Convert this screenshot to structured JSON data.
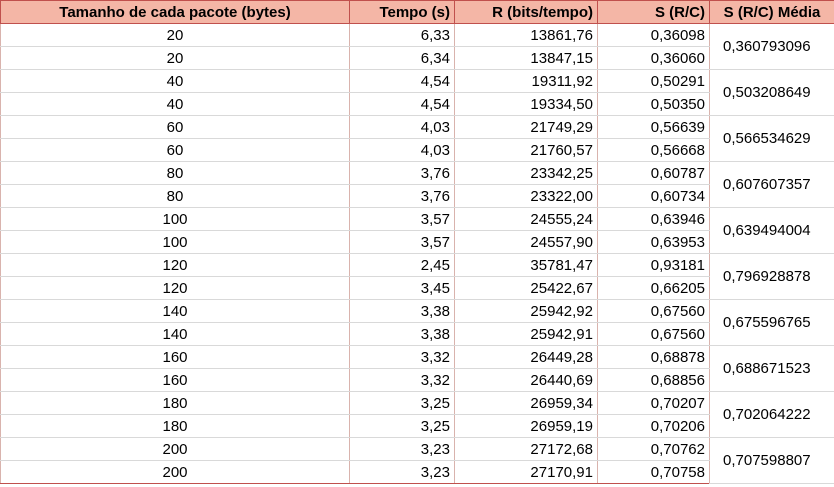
{
  "table": {
    "headers": [
      "Tamanho de cada pacote (bytes)",
      "Tempo (s)",
      "R (bits/tempo)",
      "S (R/C)",
      "S (R/C) Média"
    ],
    "rows": [
      [
        "20",
        "6,33",
        "13861,76",
        "0,36098"
      ],
      [
        "20",
        "6,34",
        "13847,15",
        "0,36060"
      ],
      [
        "40",
        "4,54",
        "19311,92",
        "0,50291"
      ],
      [
        "40",
        "4,54",
        "19334,50",
        "0,50350"
      ],
      [
        "60",
        "4,03",
        "21749,29",
        "0,56639"
      ],
      [
        "60",
        "4,03",
        "21760,57",
        "0,56668"
      ],
      [
        "80",
        "3,76",
        "23342,25",
        "0,60787"
      ],
      [
        "80",
        "3,76",
        "23322,00",
        "0,60734"
      ],
      [
        "100",
        "3,57",
        "24555,24",
        "0,63946"
      ],
      [
        "100",
        "3,57",
        "24557,90",
        "0,63953"
      ],
      [
        "120",
        "2,45",
        "35781,47",
        "0,93181"
      ],
      [
        "120",
        "3,45",
        "25422,67",
        "0,66205"
      ],
      [
        "140",
        "3,38",
        "25942,92",
        "0,67560"
      ],
      [
        "140",
        "3,38",
        "25942,91",
        "0,67560"
      ],
      [
        "160",
        "3,32",
        "26449,28",
        "0,68878"
      ],
      [
        "160",
        "3,32",
        "26440,69",
        "0,68856"
      ],
      [
        "180",
        "3,25",
        "26959,34",
        "0,70207"
      ],
      [
        "180",
        "3,25",
        "26959,19",
        "0,70206"
      ],
      [
        "200",
        "3,23",
        "27172,68",
        "0,70762"
      ],
      [
        "200",
        "3,23",
        "27170,91",
        "0,70758"
      ]
    ],
    "averages": [
      "0,360793096",
      "0,503208649",
      "0,566534629",
      "0,607607357",
      "0,639494004",
      "0,796928878",
      "0,675596765",
      "0,688671523",
      "0,702064222",
      "0,707598807"
    ],
    "colors": {
      "header_fill": "#f4b6a6",
      "border_accent": "#c0504d",
      "gridline": "#d9d9d9"
    }
  }
}
